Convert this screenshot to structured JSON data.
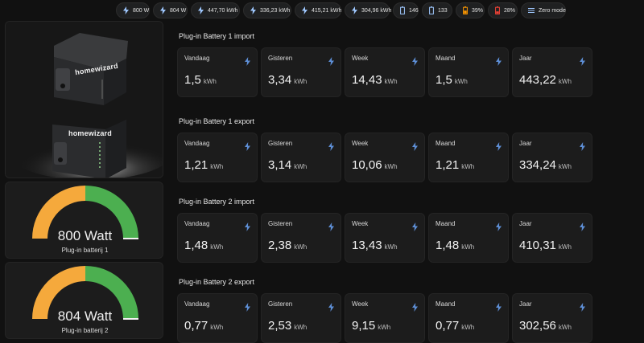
{
  "chips": [
    {
      "icon": "flash-icon",
      "text": "800 W",
      "color": "#9fc8ff"
    },
    {
      "icon": "flash-icon",
      "text": "804 W",
      "color": "#9fc8ff"
    },
    {
      "icon": "flash-icon",
      "text": "447,70 kWh",
      "color": "#9fc8ff"
    },
    {
      "icon": "flash-icon",
      "text": "336,23 kWh",
      "color": "#9fc8ff"
    },
    {
      "icon": "flash-icon",
      "text": "415,21 kWh",
      "color": "#9fc8ff"
    },
    {
      "icon": "flash-icon",
      "text": "304,96 kWh",
      "color": "#9fc8ff"
    },
    {
      "icon": "battery-outline-icon",
      "text": "146",
      "color": "#9fc8ff"
    },
    {
      "icon": "battery-outline-icon",
      "text": "133",
      "color": "#9fc8ff"
    },
    {
      "icon": "battery-low-icon",
      "text": "39%",
      "color": "#ff9800"
    },
    {
      "icon": "battery-low-icon",
      "text": "28%",
      "color": "#f44336"
    },
    {
      "icon": "list-icon",
      "text": "Zero mode",
      "color": "#9fc8ff"
    }
  ],
  "image": {
    "brand": "homewizard"
  },
  "gauges": [
    {
      "value": "800 Watt",
      "name": "Plug-in batterij 1",
      "fraction": 0.5
    },
    {
      "value": "804 Watt",
      "name": "Plug-in batterij 2",
      "fraction": 0.5
    }
  ],
  "colors": {
    "gauge_low": "#f5a93c",
    "gauge_high": "#4caf50",
    "bolt": "#5e8fd6"
  },
  "sections": [
    {
      "title": "Plug-in Battery 1 import",
      "stats": [
        {
          "label": "Vandaag",
          "value": "1,5",
          "unit": "kWh"
        },
        {
          "label": "Gisteren",
          "value": "3,34",
          "unit": "kWh"
        },
        {
          "label": "Week",
          "value": "14,43",
          "unit": "kWh"
        },
        {
          "label": "Maand",
          "value": "1,5",
          "unit": "kWh"
        },
        {
          "label": "Jaar",
          "value": "443,22",
          "unit": "kWh"
        }
      ]
    },
    {
      "title": "Plug-in Battery 1 export",
      "stats": [
        {
          "label": "Vandaag",
          "value": "1,21",
          "unit": "kWh"
        },
        {
          "label": "Gisteren",
          "value": "3,14",
          "unit": "kWh"
        },
        {
          "label": "Week",
          "value": "10,06",
          "unit": "kWh"
        },
        {
          "label": "Maand",
          "value": "1,21",
          "unit": "kWh"
        },
        {
          "label": "Jaar",
          "value": "334,24",
          "unit": "kWh"
        }
      ]
    },
    {
      "title": "Plug-in Battery 2 import",
      "stats": [
        {
          "label": "Vandaag",
          "value": "1,48",
          "unit": "kWh"
        },
        {
          "label": "Gisteren",
          "value": "2,38",
          "unit": "kWh"
        },
        {
          "label": "Week",
          "value": "13,43",
          "unit": "kWh"
        },
        {
          "label": "Maand",
          "value": "1,48",
          "unit": "kWh"
        },
        {
          "label": "Jaar",
          "value": "410,31",
          "unit": "kWh"
        }
      ]
    },
    {
      "title": "Plug-in Battery 2 export",
      "stats": [
        {
          "label": "Vandaag",
          "value": "0,77",
          "unit": "kWh"
        },
        {
          "label": "Gisteren",
          "value": "2,53",
          "unit": "kWh"
        },
        {
          "label": "Week",
          "value": "9,15",
          "unit": "kWh"
        },
        {
          "label": "Maand",
          "value": "0,77",
          "unit": "kWh"
        },
        {
          "label": "Jaar",
          "value": "302,56",
          "unit": "kWh"
        }
      ]
    }
  ]
}
